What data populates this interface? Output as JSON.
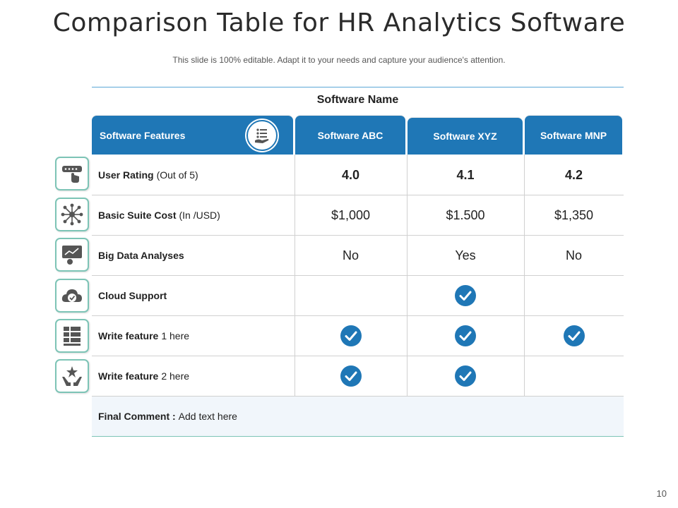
{
  "slide": {
    "title": "Comparison Table for HR Analytics Software",
    "subtitle": "This slide is 100% editable. Adapt it to your needs and capture your audience's attention.",
    "page_number": "10"
  },
  "table": {
    "group_header": "Software Name",
    "features_header": "Software Features",
    "columns": [
      "Software ABC",
      "Software XYZ",
      "Software MNP"
    ],
    "rows": [
      {
        "label_bold": "User Rating",
        "label_rest": "(Out  of 5)",
        "icon": "rating-icon",
        "values": [
          "4.0",
          "4.1",
          "4.2"
        ]
      },
      {
        "label_bold": "Basic Suite Cost",
        "label_rest": "(In /USD)",
        "icon": "network-icon",
        "values": [
          "$1,000",
          "$1.500",
          "$1,350"
        ]
      },
      {
        "label_bold": "Big Data Analyses",
        "label_rest": "",
        "icon": "analytics-icon",
        "values": [
          "No",
          "Yes",
          "No"
        ]
      },
      {
        "label_bold": "Cloud Support",
        "label_rest": "",
        "icon": "cloud-check-icon",
        "checks": [
          false,
          true,
          false
        ]
      },
      {
        "label_bold": "Write feature",
        "label_rest": "1 here",
        "icon": "server-icon",
        "checks": [
          true,
          true,
          true
        ]
      },
      {
        "label_bold": "Write feature",
        "label_rest": "2 here",
        "icon": "hands-star-icon",
        "checks": [
          true,
          true,
          false
        ]
      }
    ],
    "final_comment_label": "Final Comment :",
    "final_comment_text": "Add text here"
  },
  "colors": {
    "header_blue": "#1f77b6",
    "check_blue": "#1f77b6",
    "icon_border": "#7dc4b6"
  }
}
